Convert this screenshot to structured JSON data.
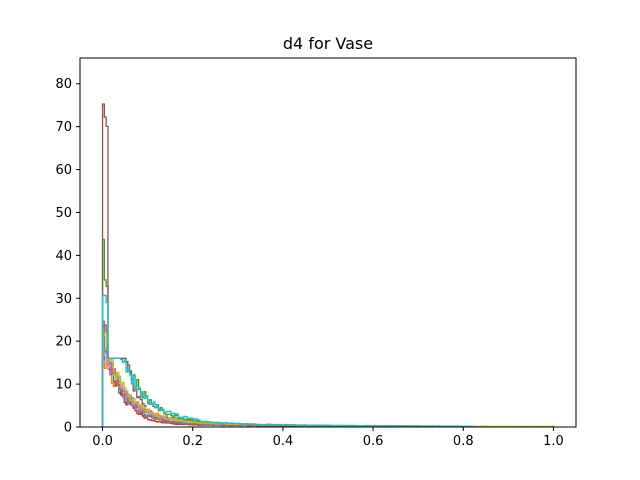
{
  "chart_data": {
    "type": "histogram-step",
    "title": "d4 for Vase",
    "xlabel": "",
    "ylabel": "",
    "xlim": [
      -0.05,
      1.05
    ],
    "ylim": [
      0,
      86
    ],
    "x_ticks": [
      0.0,
      0.2,
      0.4,
      0.6,
      0.8,
      1.0
    ],
    "x_tick_labels": [
      "0.0",
      "0.2",
      "0.4",
      "0.6",
      "0.8",
      "1.0"
    ],
    "y_ticks": [
      0,
      10,
      20,
      30,
      40,
      50,
      60,
      70,
      80
    ],
    "y_tick_labels": [
      "0",
      "10",
      "20",
      "30",
      "40",
      "50",
      "60",
      "70",
      "80"
    ],
    "grid": false,
    "series": [
      {
        "color": "#1f77b4",
        "peak": 18,
        "decay": 0.045,
        "tail": 0.55,
        "extent": 0.62
      },
      {
        "color": "#ff7f0e",
        "peak": 14,
        "decay": 0.06,
        "tail": 0.9,
        "extent": 0.8
      },
      {
        "color": "#2ca02c",
        "peak": 41,
        "decay": 0.05,
        "tail": 0.7,
        "extent": 0.7
      },
      {
        "color": "#d62728",
        "peak": 23,
        "decay": 0.035,
        "tail": 0.45,
        "extent": 0.6
      },
      {
        "color": "#9467bd",
        "peak": 17,
        "decay": 0.055,
        "tail": 0.6,
        "extent": 0.65
      },
      {
        "color": "#8c564b",
        "peak": 82,
        "decay": 0.03,
        "tail": 0.5,
        "extent": 0.55
      },
      {
        "color": "#e377c2",
        "peak": 19,
        "decay": 0.05,
        "tail": 0.65,
        "extent": 0.7
      },
      {
        "color": "#7f7f7f",
        "peak": 22,
        "decay": 0.04,
        "tail": 0.55,
        "extent": 0.6
      },
      {
        "color": "#bcbd22",
        "peak": 20,
        "decay": 0.05,
        "tail": 0.75,
        "extent": 1.0
      },
      {
        "color": "#17becf",
        "peak": 30,
        "decay": 0.06,
        "tail": 0.7,
        "extent": 0.82
      }
    ]
  }
}
